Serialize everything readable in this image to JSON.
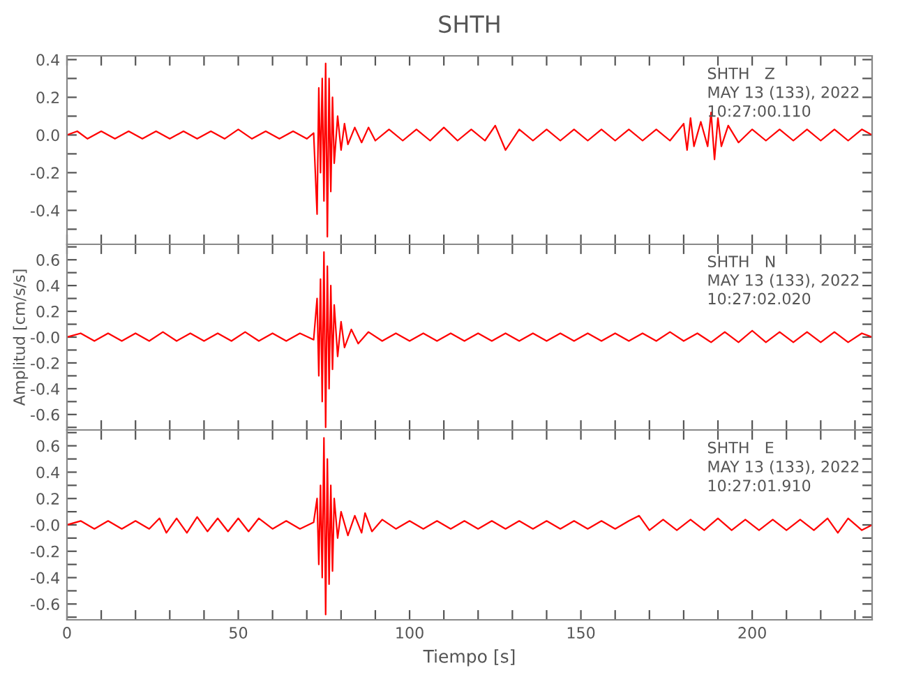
{
  "chart_data": [
    {
      "type": "line",
      "title": "SHTH",
      "tick_labels": "y",
      "annotations": [
        "SHTH   Z",
        "MAY 13 (133), 2022",
        "10:27:00.110"
      ],
      "xlim": [
        0,
        235
      ],
      "xticks": [
        0,
        {
          "value": 10,
          "label": null
        },
        {
          "value": 20,
          "label": null
        },
        {
          "value": 30,
          "label": null
        },
        {
          "value": 40,
          "label": null
        },
        50,
        {
          "value": 60,
          "label": null
        },
        {
          "value": 70,
          "label": null
        },
        {
          "value": 80,
          "label": null
        },
        {
          "value": 90,
          "label": null
        },
        100,
        {
          "value": 110,
          "label": null
        },
        {
          "value": 120,
          "label": null
        },
        {
          "value": 130,
          "label": null
        },
        {
          "value": 140,
          "label": null
        },
        150,
        {
          "value": 160,
          "label": null
        },
        {
          "value": 170,
          "label": null
        },
        {
          "value": 180,
          "label": null
        },
        {
          "value": 190,
          "label": null
        },
        200,
        {
          "value": 210,
          "label": null
        },
        {
          "value": 220,
          "label": null
        },
        {
          "value": 230,
          "label": null
        }
      ],
      "ylim": [
        -0.58,
        0.42
      ],
      "yticks": [
        {
          "value": -0.5,
          "label": null
        },
        -0.4,
        {
          "value": -0.3,
          "label": null
        },
        -0.2,
        {
          "value": -0.1,
          "label": null
        },
        {
          "value": 0.0,
          "label": "0.0"
        },
        {
          "value": 0.1,
          "label": null
        },
        0.2,
        {
          "value": 0.3,
          "label": null
        },
        0.4
      ],
      "series": [
        {
          "color": "#ff0000",
          "x": [
            0,
            3,
            6,
            10,
            14,
            18,
            22,
            26,
            30,
            34,
            38,
            42,
            46,
            50,
            54,
            58,
            62,
            66,
            70,
            72,
            73,
            73.5,
            74,
            74.5,
            75,
            75.5,
            76,
            76.5,
            77,
            77.5,
            78,
            79,
            80,
            81,
            82,
            84,
            86,
            88,
            90,
            94,
            98,
            102,
            106,
            110,
            114,
            118,
            122,
            125,
            128,
            132,
            136,
            140,
            144,
            148,
            152,
            156,
            160,
            164,
            168,
            172,
            176,
            180,
            181,
            182,
            183,
            185,
            187,
            188,
            189,
            190,
            191,
            193,
            196,
            200,
            204,
            208,
            212,
            216,
            220,
            224,
            228,
            232,
            235
          ],
          "values": [
            0.0,
            0.02,
            -0.02,
            0.02,
            -0.02,
            0.02,
            -0.02,
            0.02,
            -0.02,
            0.02,
            -0.02,
            0.02,
            -0.02,
            0.03,
            -0.02,
            0.02,
            -0.02,
            0.02,
            -0.02,
            0.01,
            -0.42,
            0.25,
            -0.2,
            0.3,
            -0.35,
            0.38,
            -0.54,
            0.3,
            -0.3,
            0.2,
            -0.15,
            0.1,
            -0.08,
            0.06,
            -0.05,
            0.04,
            -0.04,
            0.04,
            -0.03,
            0.03,
            -0.03,
            0.03,
            -0.03,
            0.04,
            -0.03,
            0.03,
            -0.03,
            0.05,
            -0.08,
            0.03,
            -0.03,
            0.03,
            -0.03,
            0.03,
            -0.03,
            0.03,
            -0.03,
            0.03,
            -0.03,
            0.03,
            -0.03,
            0.06,
            -0.08,
            0.09,
            -0.06,
            0.07,
            -0.06,
            0.12,
            -0.13,
            0.09,
            -0.06,
            0.05,
            -0.04,
            0.03,
            -0.03,
            0.03,
            -0.03,
            0.03,
            -0.03,
            0.03,
            -0.03,
            0.03,
            0.0
          ]
        }
      ]
    },
    {
      "type": "line",
      "ylabel": "Amplitud [cm/s/s]",
      "tick_labels": "y",
      "annotations": [
        "SHTH   N",
        "MAY 13 (133), 2022",
        "10:27:02.020"
      ],
      "xlim": [
        0,
        235
      ],
      "xticks": [
        0,
        {
          "value": 10,
          "label": null
        },
        {
          "value": 20,
          "label": null
        },
        {
          "value": 30,
          "label": null
        },
        {
          "value": 40,
          "label": null
        },
        50,
        {
          "value": 60,
          "label": null
        },
        {
          "value": 70,
          "label": null
        },
        {
          "value": 80,
          "label": null
        },
        {
          "value": 90,
          "label": null
        },
        100,
        {
          "value": 110,
          "label": null
        },
        {
          "value": 120,
          "label": null
        },
        {
          "value": 130,
          "label": null
        },
        {
          "value": 140,
          "label": null
        },
        150,
        {
          "value": 160,
          "label": null
        },
        {
          "value": 170,
          "label": null
        },
        {
          "value": 180,
          "label": null
        },
        {
          "value": 190,
          "label": null
        },
        200,
        {
          "value": 210,
          "label": null
        },
        {
          "value": 220,
          "label": null
        },
        {
          "value": 230,
          "label": null
        }
      ],
      "ylim": [
        -0.72,
        0.72
      ],
      "yticks": [
        {
          "value": -0.7,
          "label": null
        },
        -0.6,
        {
          "value": -0.5,
          "label": null
        },
        -0.4,
        {
          "value": -0.3,
          "label": null
        },
        -0.2,
        {
          "value": -0.1,
          "label": null
        },
        {
          "value": 0.0,
          "label": "-0.0"
        },
        {
          "value": 0.1,
          "label": null
        },
        0.2,
        {
          "value": 0.3,
          "label": null
        },
        0.4,
        {
          "value": 0.5,
          "label": null
        },
        0.6,
        {
          "value": 0.7,
          "label": null
        }
      ],
      "series": [
        {
          "color": "#ff0000",
          "x": [
            0,
            4,
            8,
            12,
            16,
            20,
            24,
            28,
            32,
            36,
            40,
            44,
            48,
            52,
            56,
            60,
            64,
            68,
            72,
            73,
            73.5,
            74,
            74.5,
            75,
            75.5,
            76,
            76.5,
            77,
            77.5,
            78,
            79,
            80,
            81,
            83,
            85,
            88,
            92,
            96,
            100,
            104,
            108,
            112,
            116,
            120,
            124,
            128,
            132,
            136,
            140,
            144,
            148,
            152,
            156,
            160,
            164,
            168,
            172,
            176,
            180,
            184,
            188,
            192,
            196,
            200,
            204,
            208,
            212,
            216,
            220,
            224,
            228,
            232,
            235
          ],
          "values": [
            0.0,
            0.03,
            -0.03,
            0.03,
            -0.03,
            0.03,
            -0.03,
            0.04,
            -0.03,
            0.03,
            -0.03,
            0.03,
            -0.03,
            0.04,
            -0.03,
            0.03,
            -0.03,
            0.03,
            -0.02,
            0.3,
            -0.3,
            0.45,
            -0.5,
            0.66,
            -0.7,
            0.55,
            -0.4,
            0.4,
            -0.25,
            0.25,
            -0.15,
            0.12,
            -0.08,
            0.06,
            -0.05,
            0.04,
            -0.03,
            0.03,
            -0.03,
            0.03,
            -0.03,
            0.03,
            -0.03,
            0.03,
            -0.03,
            0.03,
            -0.03,
            0.03,
            -0.03,
            0.03,
            -0.03,
            0.03,
            -0.03,
            0.03,
            -0.03,
            0.03,
            -0.03,
            0.04,
            -0.03,
            0.03,
            -0.04,
            0.04,
            -0.04,
            0.05,
            -0.04,
            0.04,
            -0.04,
            0.04,
            -0.04,
            0.04,
            -0.04,
            0.03,
            0.0
          ]
        }
      ]
    },
    {
      "type": "line",
      "xlabel": "Tiempo [s]",
      "annotations": [
        "SHTH   E",
        "MAY 13 (133), 2022",
        "10:27:01.910"
      ],
      "xlim": [
        0,
        235
      ],
      "xticks": [
        0,
        {
          "value": 10,
          "label": null
        },
        {
          "value": 20,
          "label": null
        },
        {
          "value": 30,
          "label": null
        },
        {
          "value": 40,
          "label": null
        },
        50,
        {
          "value": 60,
          "label": null
        },
        {
          "value": 70,
          "label": null
        },
        {
          "value": 80,
          "label": null
        },
        {
          "value": 90,
          "label": null
        },
        100,
        {
          "value": 110,
          "label": null
        },
        {
          "value": 120,
          "label": null
        },
        {
          "value": 130,
          "label": null
        },
        {
          "value": 140,
          "label": null
        },
        150,
        {
          "value": 160,
          "label": null
        },
        {
          "value": 170,
          "label": null
        },
        {
          "value": 180,
          "label": null
        },
        {
          "value": 190,
          "label": null
        },
        200,
        {
          "value": 210,
          "label": null
        },
        {
          "value": 220,
          "label": null
        },
        {
          "value": 230,
          "label": null
        }
      ],
      "ylim": [
        -0.72,
        0.72
      ],
      "yticks": [
        {
          "value": -0.7,
          "label": null
        },
        -0.6,
        {
          "value": -0.5,
          "label": null
        },
        -0.4,
        {
          "value": -0.3,
          "label": null
        },
        -0.2,
        {
          "value": -0.1,
          "label": null
        },
        {
          "value": 0.0,
          "label": "-0.0"
        },
        {
          "value": 0.1,
          "label": null
        },
        0.2,
        {
          "value": 0.3,
          "label": null
        },
        0.4,
        {
          "value": 0.5,
          "label": null
        },
        0.6,
        {
          "value": 0.7,
          "label": null
        }
      ],
      "series": [
        {
          "color": "#ff0000",
          "x": [
            0,
            4,
            8,
            12,
            16,
            20,
            24,
            27,
            29,
            32,
            35,
            38,
            41,
            44,
            47,
            50,
            53,
            56,
            60,
            64,
            68,
            72,
            73,
            73.5,
            74,
            74.5,
            75,
            75.5,
            76,
            76.5,
            77,
            77.5,
            78,
            79,
            80,
            82,
            84,
            86,
            87,
            89,
            92,
            96,
            100,
            104,
            108,
            112,
            116,
            120,
            124,
            128,
            132,
            136,
            140,
            144,
            148,
            152,
            156,
            160,
            164,
            167,
            170,
            174,
            178,
            182,
            186,
            190,
            194,
            198,
            202,
            206,
            210,
            214,
            218,
            222,
            225,
            228,
            232,
            235
          ],
          "values": [
            0.0,
            0.03,
            -0.03,
            0.03,
            -0.03,
            0.03,
            -0.03,
            0.05,
            -0.06,
            0.05,
            -0.06,
            0.06,
            -0.05,
            0.05,
            -0.05,
            0.05,
            -0.05,
            0.05,
            -0.03,
            0.03,
            -0.03,
            0.02,
            0.2,
            -0.3,
            0.3,
            -0.4,
            0.66,
            -0.68,
            0.5,
            -0.45,
            0.3,
            -0.35,
            0.2,
            -0.1,
            0.1,
            -0.08,
            0.07,
            -0.06,
            0.09,
            -0.05,
            0.04,
            -0.03,
            0.03,
            -0.03,
            0.03,
            -0.03,
            0.03,
            -0.03,
            0.03,
            -0.03,
            0.03,
            -0.03,
            0.03,
            -0.03,
            0.03,
            -0.03,
            0.03,
            -0.03,
            0.03,
            0.07,
            -0.04,
            0.04,
            -0.04,
            0.04,
            -0.04,
            0.05,
            -0.04,
            0.04,
            -0.04,
            0.04,
            -0.04,
            0.04,
            -0.04,
            0.05,
            -0.06,
            0.05,
            -0.04,
            0.0
          ]
        }
      ]
    }
  ]
}
